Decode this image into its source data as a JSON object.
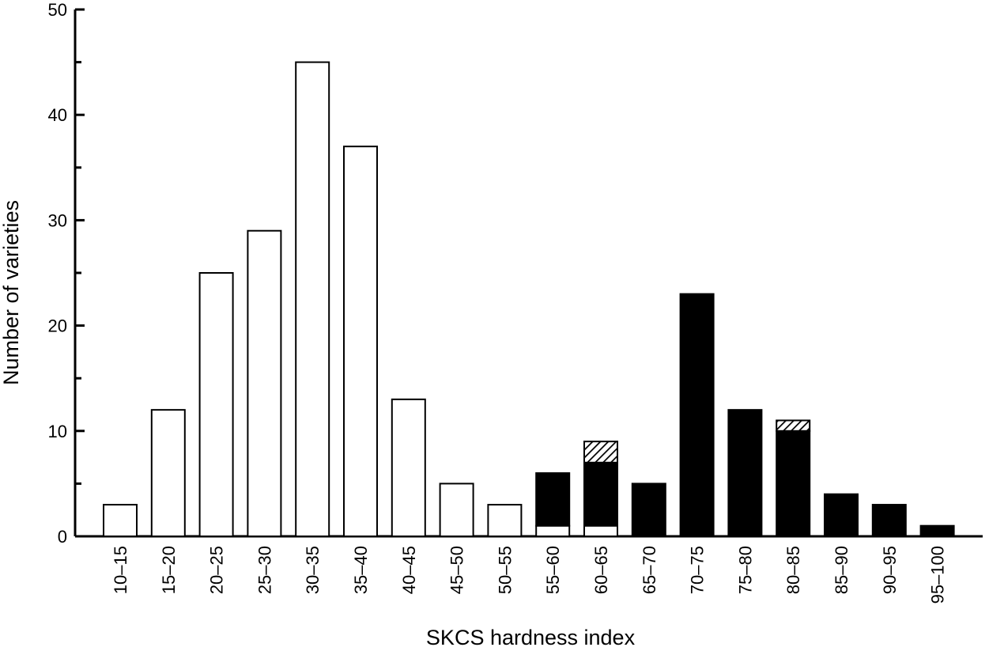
{
  "chart_data": {
    "type": "bar",
    "stacked": true,
    "xlabel": "SKCS hardness index",
    "ylabel": "Number of varieties",
    "ylim": [
      0,
      50
    ],
    "yticks": [
      0,
      10,
      20,
      30,
      40,
      50
    ],
    "grid": false,
    "legend": "none",
    "categories": [
      "10–15",
      "15–20",
      "20–25",
      "25–30",
      "30–35",
      "35–40",
      "40–45",
      "45–50",
      "50–55",
      "55–60",
      "60–65",
      "65–70",
      "70–75",
      "75–80",
      "80–85",
      "85–90",
      "90–95",
      "95–100"
    ],
    "series": [
      {
        "fill": "white",
        "color": "#ffffff",
        "values": [
          3,
          12,
          25,
          29,
          45,
          37,
          13,
          5,
          3,
          1,
          1,
          0,
          0,
          0,
          0,
          0,
          0,
          0
        ]
      },
      {
        "fill": "black",
        "color": "#000000",
        "values": [
          0,
          0,
          0,
          0,
          0,
          0,
          0,
          0,
          0,
          5,
          6,
          5,
          23,
          12,
          10,
          4,
          3,
          1
        ]
      },
      {
        "fill": "hatched",
        "color": "#000000",
        "values": [
          0,
          0,
          0,
          0,
          0,
          0,
          0,
          0,
          0,
          0,
          2,
          0,
          0,
          0,
          1,
          0,
          0,
          0
        ]
      }
    ]
  }
}
